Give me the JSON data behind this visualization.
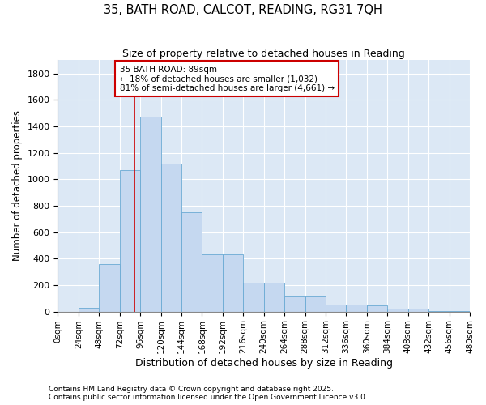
{
  "title": "35, BATH ROAD, CALCOT, READING, RG31 7QH",
  "subtitle": "Size of property relative to detached houses in Reading",
  "xlabel": "Distribution of detached houses by size in Reading",
  "ylabel": "Number of detached properties",
  "property_size": 89,
  "annotation_line1": "35 BATH ROAD: 89sqm",
  "annotation_line2": "← 18% of detached houses are smaller (1,032)",
  "annotation_line3": "81% of semi-detached houses are larger (4,661) →",
  "bin_edges": [
    0,
    24,
    48,
    72,
    96,
    120,
    144,
    168,
    192,
    216,
    240,
    264,
    288,
    312,
    336,
    360,
    384,
    408,
    432,
    456,
    480
  ],
  "bar_heights": [
    0,
    30,
    360,
    1070,
    1470,
    1120,
    750,
    435,
    435,
    220,
    220,
    115,
    115,
    55,
    55,
    45,
    25,
    20,
    5,
    5
  ],
  "bar_color": "#c5d8f0",
  "bar_edge_color": "#6aaad4",
  "red_line_color": "#cc0000",
  "annotation_box_color": "#cc0000",
  "background_color": "#dce8f5",
  "footer_text": "Contains HM Land Registry data © Crown copyright and database right 2025.\nContains public sector information licensed under the Open Government Licence v3.0.",
  "ylim": [
    0,
    1900
  ],
  "xlim": [
    0,
    480
  ],
  "yticks": [
    0,
    200,
    400,
    600,
    800,
    1000,
    1200,
    1400,
    1600,
    1800
  ],
  "xtick_labels": [
    "0sqm",
    "24sqm",
    "48sqm",
    "72sqm",
    "96sqm",
    "120sqm",
    "144sqm",
    "168sqm",
    "192sqm",
    "216sqm",
    "240sqm",
    "264sqm",
    "288sqm",
    "312sqm",
    "336sqm",
    "360sqm",
    "384sqm",
    "408sqm",
    "432sqm",
    "456sqm",
    "480sqm"
  ]
}
